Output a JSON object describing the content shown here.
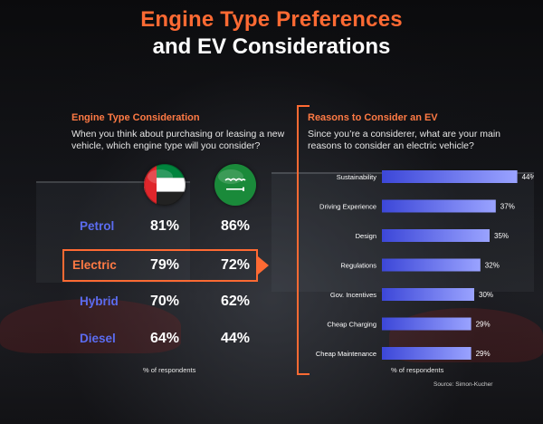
{
  "title_line1": "Engine Type Preferences",
  "title_line2": "and EV Considerations",
  "left_panel": {
    "heading": "Engine Type Consideration",
    "question": "When you think about purchasing or leasing a new vehicle, which engine type will you consider?",
    "footnote": "% of respondents"
  },
  "right_panel": {
    "heading": "Reasons to Consider an EV",
    "question": "Since you’re a considerer, what are your main reasons to consider an electric vehicle?",
    "footnote": "% of respondents"
  },
  "source": "Source: Simon-Kucher",
  "colors": {
    "accent": "#ff6a33",
    "petrol": "#5b6cf0",
    "electric": "#ff7a44",
    "hybrid": "#5b6cf0",
    "diesel": "#5b6cf0",
    "bar_gradient_start": "#3c47d8",
    "bar_gradient_end": "#9aa3ff"
  },
  "chart_data": [
    {
      "type": "table",
      "title": "Engine Type Consideration",
      "columns": [
        "UAE",
        "Saudi Arabia"
      ],
      "column_icons": [
        "uae-flag-icon",
        "saudi-arabia-flag-icon"
      ],
      "rows": [
        {
          "label": "Petrol",
          "values": [
            "81%",
            "86%"
          ],
          "highlighted": false
        },
        {
          "label": "Electric",
          "values": [
            "79%",
            "72%"
          ],
          "highlighted": true
        },
        {
          "label": "Hybrid",
          "values": [
            "70%",
            "62%"
          ],
          "highlighted": false
        },
        {
          "label": "Diesel",
          "values": [
            "64%",
            "44%"
          ],
          "highlighted": false
        }
      ],
      "footnote": "% of respondents"
    },
    {
      "type": "bar",
      "orientation": "horizontal",
      "title": "Reasons to Consider an EV",
      "categories": [
        "Sustainability",
        "Driving Experience",
        "Design",
        "Regulations",
        "Gov. Incentives",
        "Cheap Charging",
        "Cheap Maintenance"
      ],
      "values": [
        44,
        37,
        35,
        32,
        30,
        29,
        29
      ],
      "value_labels": [
        "44%",
        "37%",
        "35%",
        "32%",
        "30%",
        "29%",
        "29%"
      ],
      "unit": "%",
      "xlim": [
        0,
        50
      ],
      "grid": false,
      "footnote": "% of respondents"
    }
  ]
}
